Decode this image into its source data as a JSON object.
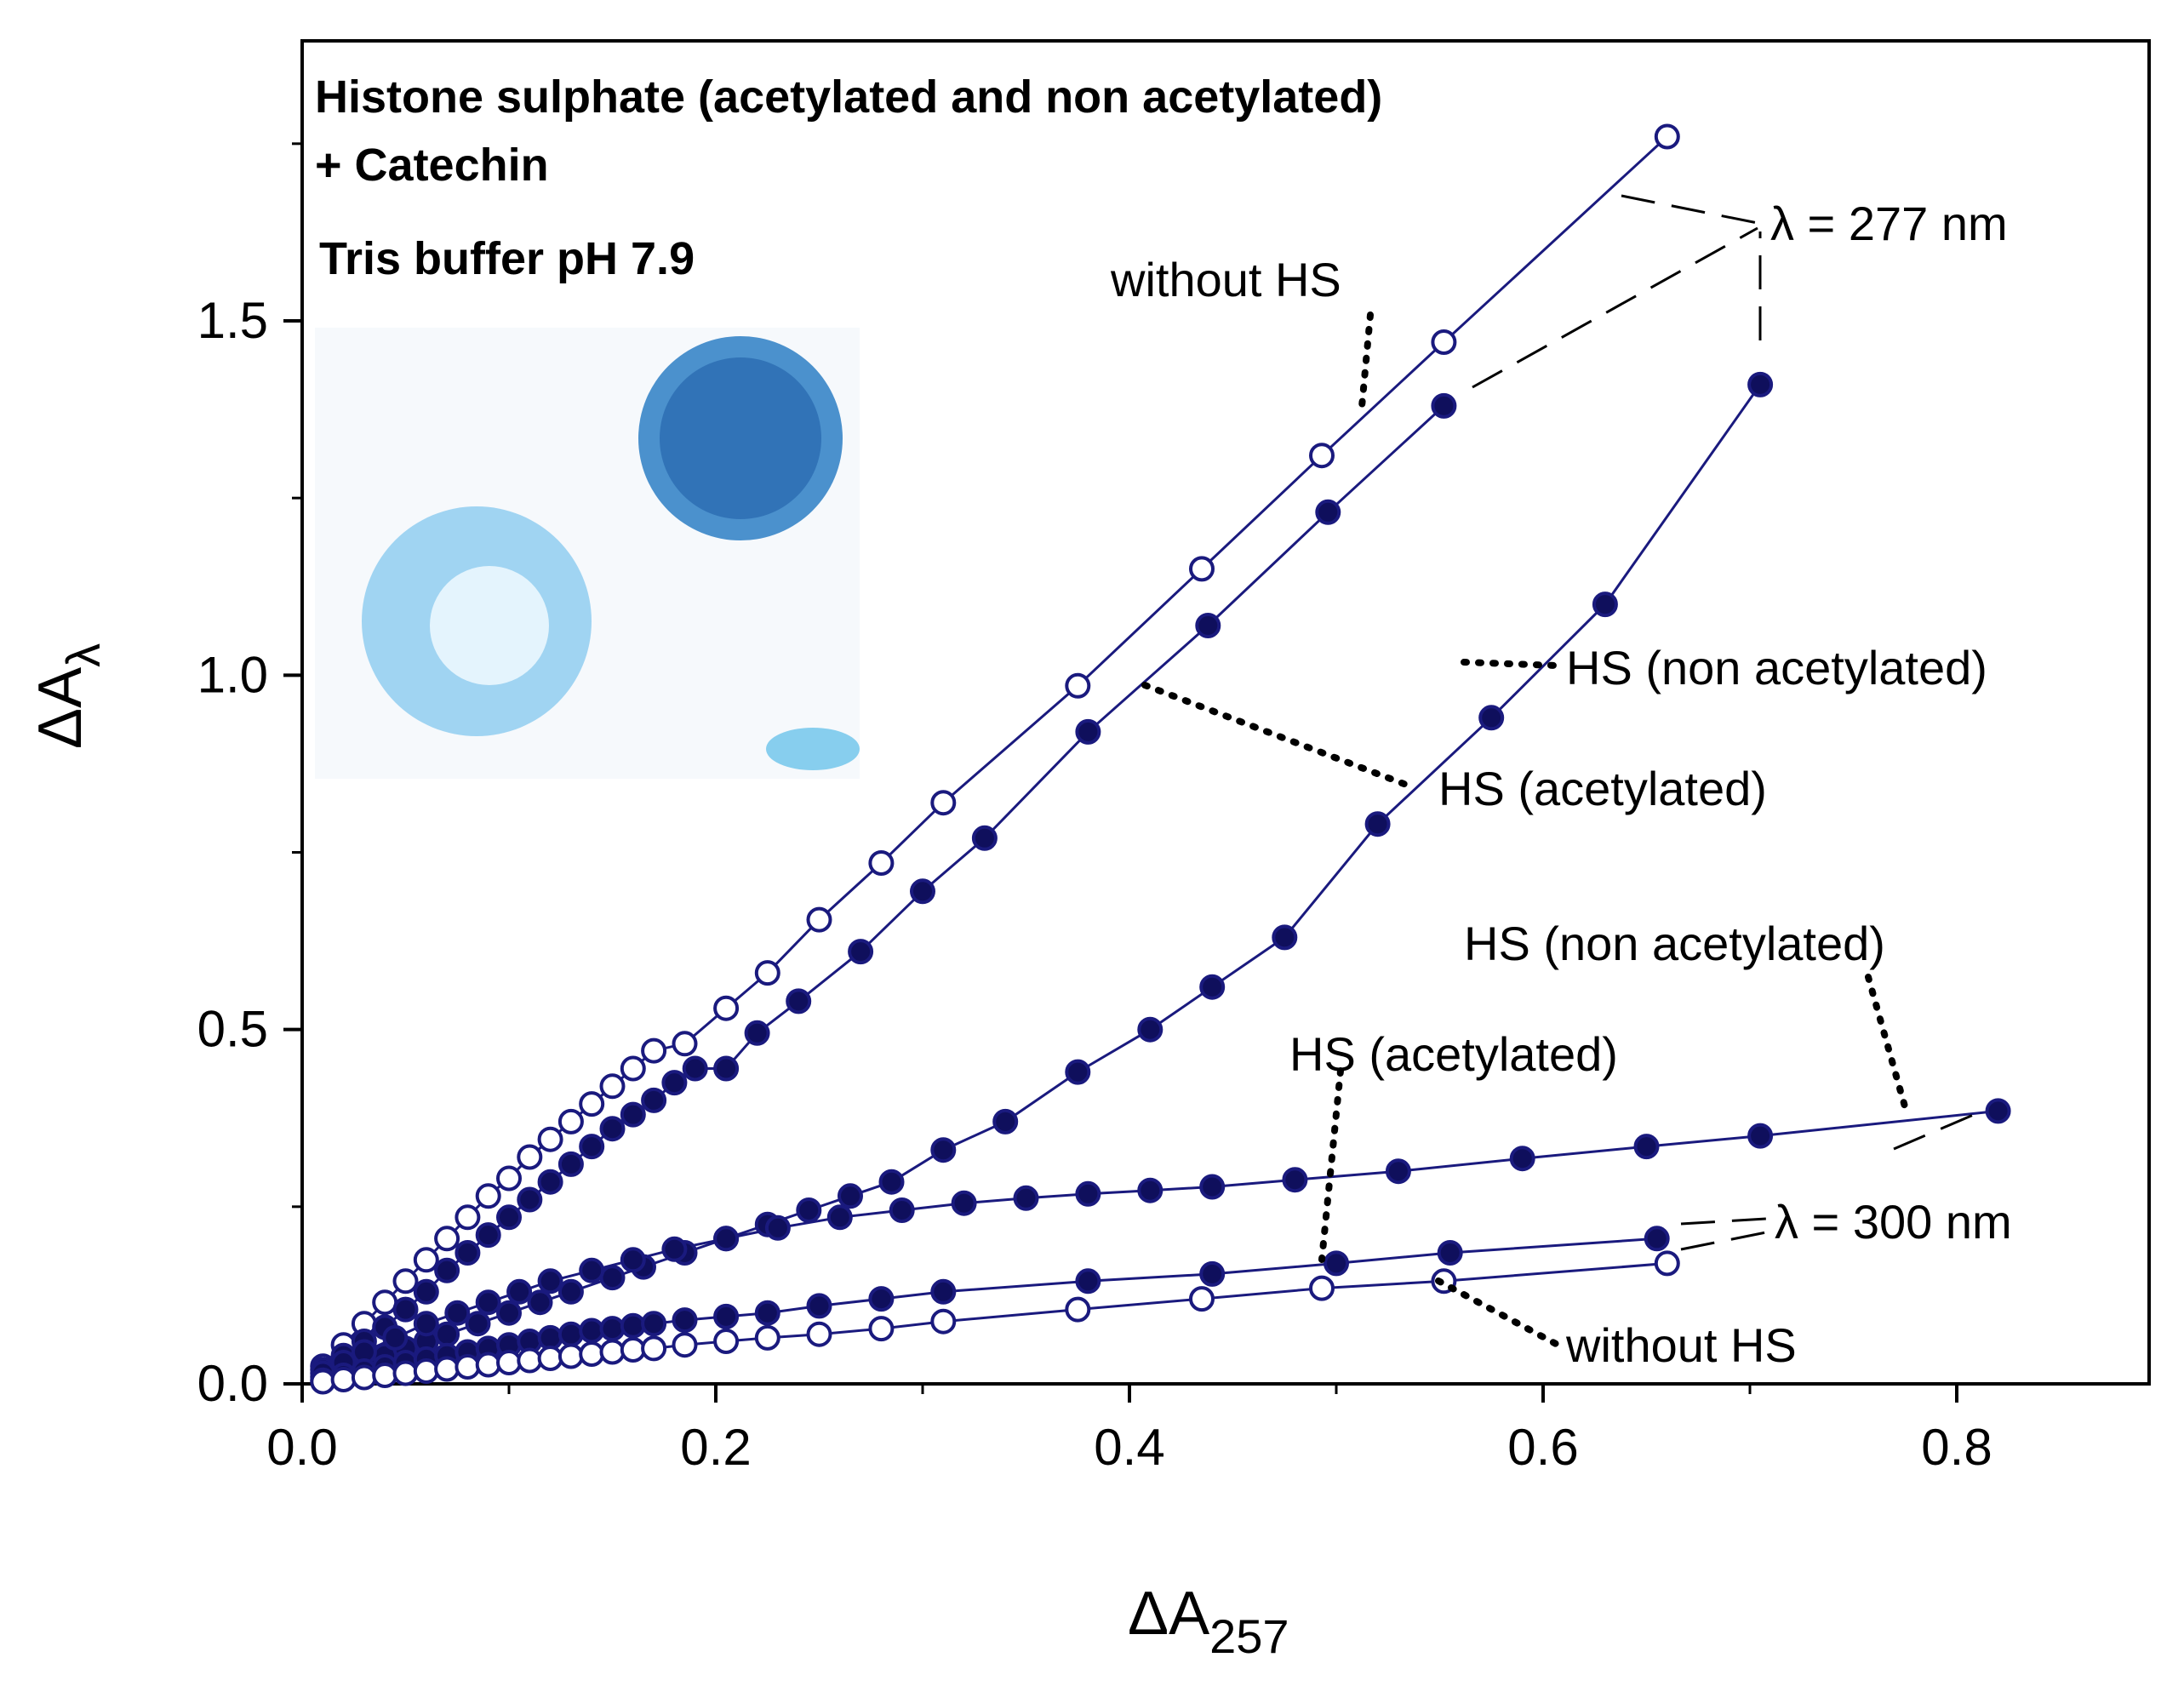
{
  "chart_data": {
    "type": "scatter",
    "title_lines": [
      "Histone sulphate (acetylated and non acetylated)",
      "+ Catechin"
    ],
    "subtitle": "Tris buffer  pH 7.9",
    "xlabel": {
      "main": "ΔA",
      "sub": "257"
    },
    "ylabel": {
      "main": "ΔA",
      "sub": "λ"
    },
    "xlim": [
      0,
      0.9
    ],
    "ylim": [
      0,
      1.8
    ],
    "xticks": [
      {
        "v": 0.0,
        "label": "0.0"
      },
      {
        "v": 0.2,
        "label": "0.2"
      },
      {
        "v": 0.4,
        "label": "0.4"
      },
      {
        "v": 0.6,
        "label": "0.6"
      },
      {
        "v": 0.8,
        "label": "0.8"
      }
    ],
    "yticks": [
      {
        "v": 0.0,
        "label": "0.0"
      },
      {
        "v": 0.5,
        "label": "0.5"
      },
      {
        "v": 1.0,
        "label": "1.0"
      },
      {
        "v": 1.5,
        "label": "1.5"
      }
    ],
    "grid": false,
    "colors": {
      "series": "#1a1a7e",
      "fill": "#0f0f5c",
      "open_fill": "#ffffff",
      "axis": "#000000",
      "leader": "#000000",
      "blot": "#3a9ad9"
    },
    "series": [
      {
        "wavelength_nm": 277,
        "condition": "without HS",
        "marker": "open",
        "x": [
          0.01,
          0.02,
          0.03,
          0.04,
          0.05,
          0.06,
          0.07,
          0.08,
          0.09,
          0.1,
          0.11,
          0.12,
          0.13,
          0.14,
          0.15,
          0.16,
          0.17,
          0.185,
          0.205,
          0.225,
          0.25,
          0.28,
          0.31,
          0.375,
          0.435,
          0.493,
          0.552,
          0.66
        ],
        "y": [
          0.025,
          0.055,
          0.085,
          0.115,
          0.145,
          0.175,
          0.205,
          0.235,
          0.265,
          0.29,
          0.32,
          0.345,
          0.37,
          0.395,
          0.42,
          0.445,
          0.47,
          0.48,
          0.53,
          0.58,
          0.655,
          0.735,
          0.82,
          0.985,
          1.15,
          1.31,
          1.47,
          1.76
        ]
      },
      {
        "wavelength_nm": 277,
        "condition": "HS (acetylated)",
        "marker": "filled",
        "x": [
          0.01,
          0.02,
          0.03,
          0.04,
          0.05,
          0.06,
          0.07,
          0.08,
          0.09,
          0.1,
          0.11,
          0.12,
          0.13,
          0.14,
          0.15,
          0.16,
          0.17,
          0.18,
          0.19,
          0.205,
          0.22,
          0.24,
          0.27,
          0.3,
          0.33,
          0.38,
          0.438,
          0.496,
          0.552
        ],
        "y": [
          0.02,
          0.04,
          0.06,
          0.08,
          0.105,
          0.13,
          0.16,
          0.185,
          0.21,
          0.235,
          0.26,
          0.285,
          0.31,
          0.335,
          0.36,
          0.38,
          0.4,
          0.425,
          0.445,
          0.445,
          0.495,
          0.54,
          0.61,
          0.695,
          0.77,
          0.92,
          1.07,
          1.23,
          1.38
        ]
      },
      {
        "wavelength_nm": 277,
        "condition": "HS (non acetylated)",
        "marker": "filled",
        "x": [
          0.01,
          0.02,
          0.03,
          0.04,
          0.05,
          0.06,
          0.07,
          0.085,
          0.1,
          0.115,
          0.13,
          0.15,
          0.165,
          0.185,
          0.205,
          0.225,
          0.245,
          0.265,
          0.285,
          0.31,
          0.34,
          0.375,
          0.41,
          0.44,
          0.475,
          0.52,
          0.575,
          0.63,
          0.705
        ],
        "y": [
          0.01,
          0.02,
          0.03,
          0.04,
          0.05,
          0.06,
          0.07,
          0.085,
          0.1,
          0.115,
          0.13,
          0.15,
          0.165,
          0.185,
          0.205,
          0.225,
          0.245,
          0.265,
          0.285,
          0.33,
          0.37,
          0.44,
          0.5,
          0.56,
          0.63,
          0.79,
          0.94,
          1.1,
          1.41
        ]
      },
      {
        "wavelength_nm": 300,
        "condition": "HS (non acetylated)",
        "marker": "filled",
        "x": [
          0.01,
          0.02,
          0.03,
          0.045,
          0.06,
          0.075,
          0.09,
          0.105,
          0.12,
          0.14,
          0.16,
          0.18,
          0.205,
          0.23,
          0.26,
          0.29,
          0.32,
          0.35,
          0.38,
          0.41,
          0.44,
          0.48,
          0.53,
          0.59,
          0.65,
          0.705,
          0.82
        ],
        "y": [
          0.015,
          0.03,
          0.045,
          0.065,
          0.085,
          0.1,
          0.115,
          0.13,
          0.145,
          0.16,
          0.175,
          0.19,
          0.205,
          0.22,
          0.235,
          0.245,
          0.255,
          0.262,
          0.268,
          0.273,
          0.278,
          0.288,
          0.3,
          0.318,
          0.335,
          0.35,
          0.385
        ]
      },
      {
        "wavelength_nm": 300,
        "condition": "HS (acetylated)",
        "marker": "filled",
        "x": [
          0.01,
          0.02,
          0.03,
          0.04,
          0.05,
          0.06,
          0.07,
          0.08,
          0.09,
          0.1,
          0.11,
          0.12,
          0.13,
          0.14,
          0.15,
          0.16,
          0.17,
          0.185,
          0.205,
          0.225,
          0.25,
          0.28,
          0.31,
          0.38,
          0.44,
          0.5,
          0.555,
          0.655
        ],
        "y": [
          0.005,
          0.012,
          0.018,
          0.024,
          0.03,
          0.035,
          0.04,
          0.045,
          0.05,
          0.055,
          0.06,
          0.065,
          0.07,
          0.075,
          0.078,
          0.082,
          0.085,
          0.09,
          0.095,
          0.1,
          0.11,
          0.12,
          0.13,
          0.145,
          0.155,
          0.17,
          0.185,
          0.205
        ]
      },
      {
        "wavelength_nm": 300,
        "condition": "without HS",
        "marker": "open",
        "x": [
          0.01,
          0.02,
          0.03,
          0.04,
          0.05,
          0.06,
          0.07,
          0.08,
          0.09,
          0.1,
          0.11,
          0.12,
          0.13,
          0.14,
          0.15,
          0.16,
          0.17,
          0.185,
          0.205,
          0.225,
          0.25,
          0.28,
          0.31,
          0.375,
          0.435,
          0.493,
          0.552,
          0.66
        ],
        "y": [
          0.003,
          0.006,
          0.009,
          0.012,
          0.015,
          0.018,
          0.021,
          0.024,
          0.027,
          0.03,
          0.033,
          0.036,
          0.039,
          0.042,
          0.045,
          0.048,
          0.05,
          0.055,
          0.06,
          0.065,
          0.07,
          0.078,
          0.088,
          0.105,
          0.12,
          0.135,
          0.145,
          0.17
        ]
      }
    ],
    "annotations": {
      "lambda277": "λ = 277 nm",
      "lambda300": "λ = 300 nm",
      "without_hs_top": "without HS",
      "hs_non_acetylated_277": "HS (non acetylated)",
      "hs_acetylated_277": "HS (acetylated)",
      "hs_non_acetylated_300": "HS (non acetylated)",
      "hs_acetylated_300": "HS (acetylated)",
      "without_hs_bottom": "without HS"
    }
  }
}
